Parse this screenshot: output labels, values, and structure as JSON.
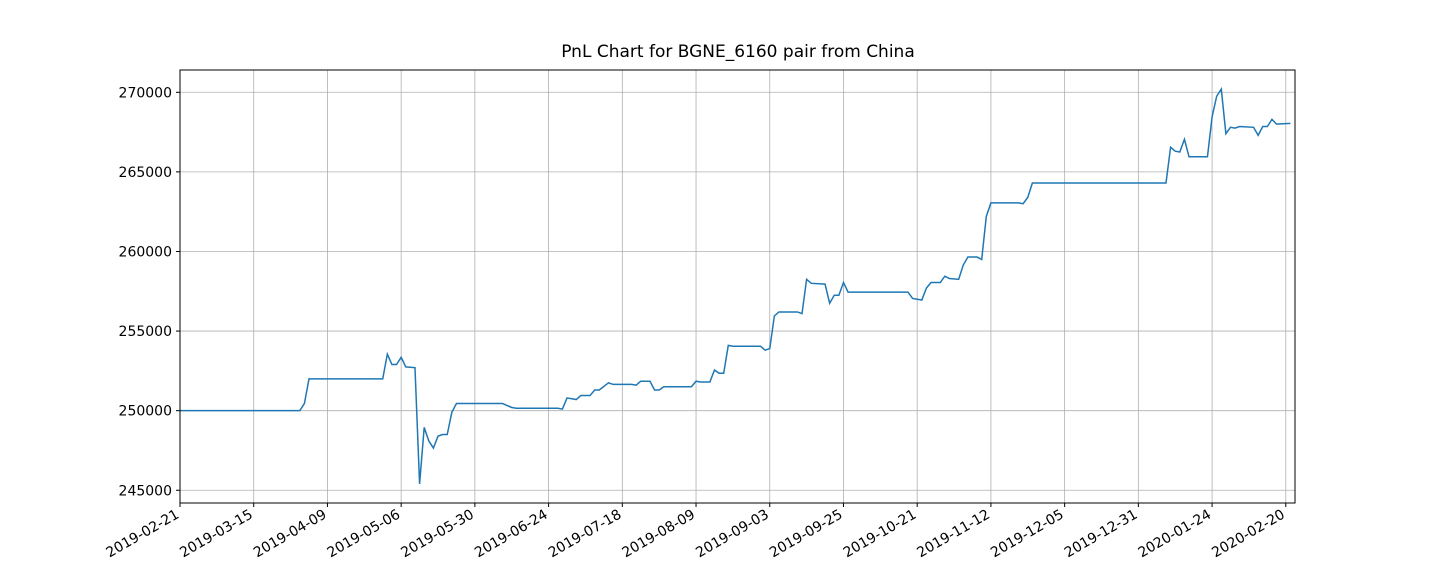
{
  "chart_data": {
    "type": "line",
    "title": "PnL Chart for BGNE_6160 pair from China",
    "x": [
      0,
      26,
      27,
      28,
      44,
      45,
      46,
      47,
      48,
      49,
      51,
      52,
      53,
      54,
      55,
      56,
      57,
      58,
      59,
      60,
      70,
      72,
      73,
      82,
      83,
      84,
      86,
      87,
      89,
      90,
      91,
      93,
      94,
      98,
      99,
      100,
      102,
      103,
      104,
      105,
      111,
      112,
      113,
      115,
      116,
      117,
      118,
      119,
      120,
      126,
      127,
      128,
      129,
      130,
      134,
      135,
      136,
      137,
      140,
      141,
      142,
      143,
      144,
      145,
      158,
      159,
      161,
      162,
      163,
      165,
      166,
      167,
      169,
      170,
      171,
      173,
      174,
      175,
      176,
      182,
      183,
      184,
      185,
      214,
      215,
      216,
      217,
      218,
      219,
      223,
      224,
      225,
      226,
      227,
      228,
      229,
      230,
      233,
      234,
      235,
      236,
      237,
      238,
      241
    ],
    "series": [
      {
        "name": "PnL",
        "color": "#1f77b4",
        "values": [
          250000,
          250000,
          250450,
          252000,
          252000,
          253550,
          252900,
          252900,
          253350,
          252750,
          252700,
          245400,
          248950,
          248100,
          247650,
          248400,
          248500,
          248500,
          249900,
          250450,
          250450,
          250200,
          250150,
          250150,
          250100,
          250800,
          250700,
          250950,
          250950,
          251300,
          251300,
          251750,
          251650,
          251650,
          251600,
          251850,
          251850,
          251300,
          251300,
          251500,
          251500,
          251850,
          251800,
          251800,
          252550,
          252350,
          252350,
          254100,
          254050,
          254050,
          253800,
          253900,
          255950,
          256200,
          256200,
          256100,
          258250,
          258000,
          257950,
          256750,
          257250,
          257250,
          258050,
          257450,
          257450,
          257050,
          256950,
          257700,
          258050,
          258050,
          258450,
          258300,
          258250,
          259150,
          259650,
          259650,
          259500,
          262200,
          263050,
          263050,
          263000,
          263400,
          264300,
          264300,
          266550,
          266300,
          266250,
          267050,
          265950,
          265950,
          268450,
          269750,
          270200,
          267400,
          267800,
          267750,
          267850,
          267800,
          267300,
          267850,
          267850,
          268300,
          268000,
          268050
        ]
      }
    ],
    "xlim": [
      0,
      242
    ],
    "xticks": [
      {
        "value": 0,
        "label": "2019-02-21"
      },
      {
        "value": 16,
        "label": "2019-03-15"
      },
      {
        "value": 32,
        "label": "2019-04-09"
      },
      {
        "value": 48,
        "label": "2019-05-06"
      },
      {
        "value": 64,
        "label": "2019-05-30"
      },
      {
        "value": 80,
        "label": "2019-06-24"
      },
      {
        "value": 96,
        "label": "2019-07-18"
      },
      {
        "value": 112,
        "label": "2019-08-09"
      },
      {
        "value": 128,
        "label": "2019-09-03"
      },
      {
        "value": 144,
        "label": "2019-09-25"
      },
      {
        "value": 160,
        "label": "2019-10-21"
      },
      {
        "value": 176,
        "label": "2019-11-12"
      },
      {
        "value": 192,
        "label": "2019-12-05"
      },
      {
        "value": 208,
        "label": "2019-12-31"
      },
      {
        "value": 224,
        "label": "2020-01-24"
      },
      {
        "value": 240,
        "label": "2020-02-20"
      }
    ],
    "ylim": [
      244200,
      271400
    ],
    "yticks": [
      245000,
      250000,
      255000,
      260000,
      265000,
      270000
    ],
    "grid": true
  }
}
